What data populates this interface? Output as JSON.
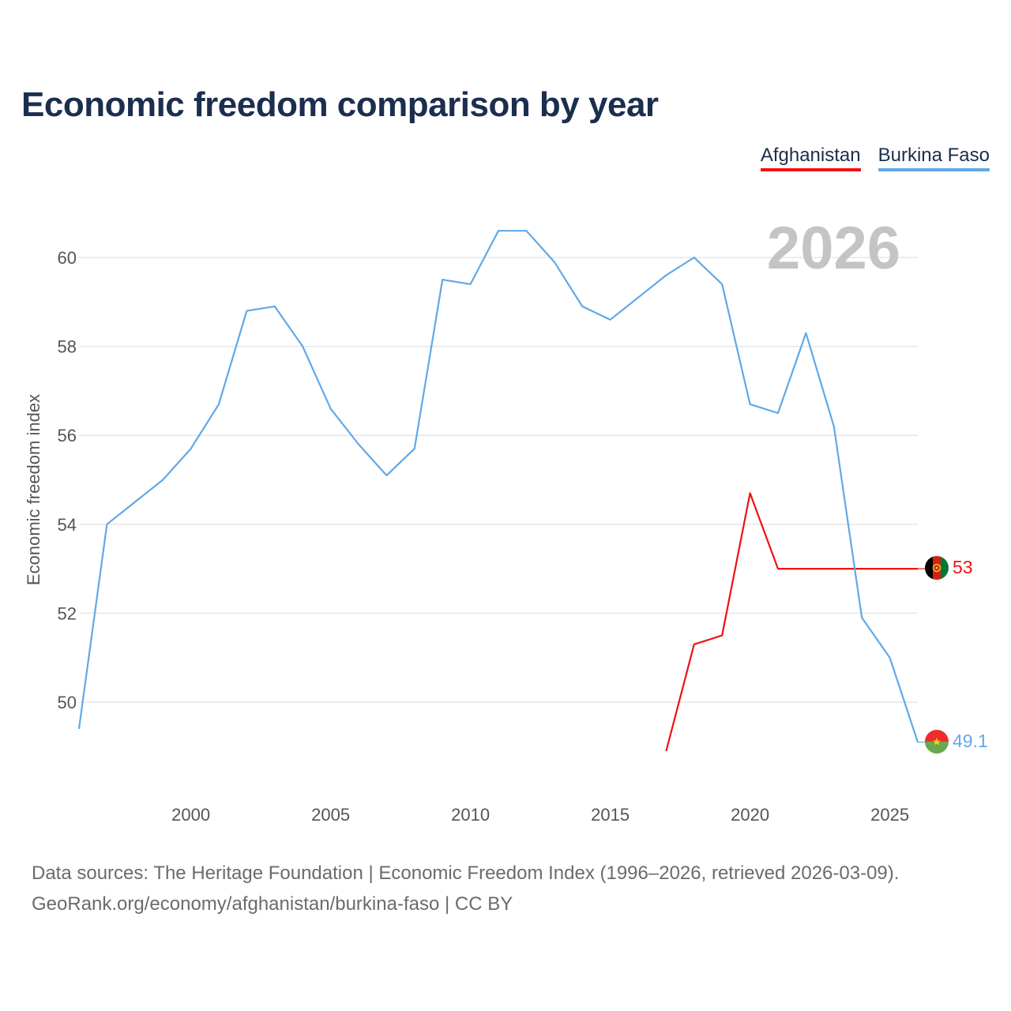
{
  "title": "Economic freedom comparison by year",
  "legend": [
    {
      "label": "Afghanistan",
      "color": "#ee1111"
    },
    {
      "label": "Burkina Faso",
      "color": "#60a8e8"
    }
  ],
  "footer": {
    "sources": "Data sources: The Heritage Foundation | Economic Freedom Index (1996–2026, retrieved 2026-03-09).",
    "credit": "GeoRank.org/economy/afghanistan/burkina-faso | CC BY"
  },
  "chart_data": {
    "type": "line",
    "title": "Economic freedom comparison by year",
    "xlabel": "",
    "ylabel": "Economic freedom index",
    "xlim": [
      1996,
      2026
    ],
    "ylim": [
      48.5,
      61.5
    ],
    "grid": true,
    "legend_position": "top-right",
    "year_label": "2026",
    "x_ticks": [
      2000,
      2005,
      2010,
      2015,
      2020,
      2025
    ],
    "y_ticks": [
      50,
      52,
      54,
      56,
      58,
      60
    ],
    "series": [
      {
        "name": "Afghanistan",
        "color": "#ee1111",
        "end_label": "53",
        "flag": "afghanistan-flag-icon",
        "points": [
          [
            2017,
            48.9
          ],
          [
            2018,
            51.3
          ],
          [
            2019,
            51.5
          ],
          [
            2020,
            54.7
          ],
          [
            2021,
            53.0
          ],
          [
            2022,
            53.0
          ],
          [
            2023,
            53.0
          ],
          [
            2024,
            53.0
          ],
          [
            2025,
            53.0
          ],
          [
            2026,
            53.0
          ]
        ]
      },
      {
        "name": "Burkina Faso",
        "color": "#60a8e8",
        "end_label": "49.1",
        "flag": "burkina-faso-flag-icon",
        "points": [
          [
            1996,
            49.4
          ],
          [
            1997,
            54.0
          ],
          [
            1998,
            54.5
          ],
          [
            1999,
            55.0
          ],
          [
            2000,
            55.7
          ],
          [
            2001,
            56.7
          ],
          [
            2002,
            58.8
          ],
          [
            2003,
            58.9
          ],
          [
            2004,
            58.0
          ],
          [
            2005,
            56.6
          ],
          [
            2006,
            55.8
          ],
          [
            2007,
            55.1
          ],
          [
            2008,
            55.7
          ],
          [
            2009,
            59.5
          ],
          [
            2010,
            59.4
          ],
          [
            2011,
            60.6
          ],
          [
            2012,
            60.6
          ],
          [
            2013,
            59.9
          ],
          [
            2014,
            58.9
          ],
          [
            2015,
            58.6
          ],
          [
            2016,
            59.1
          ],
          [
            2017,
            59.6
          ],
          [
            2018,
            60.0
          ],
          [
            2019,
            59.4
          ],
          [
            2020,
            56.7
          ],
          [
            2021,
            56.5
          ],
          [
            2022,
            58.3
          ],
          [
            2023,
            56.2
          ],
          [
            2024,
            51.9
          ],
          [
            2025,
            51.0
          ],
          [
            2026,
            49.1
          ]
        ]
      }
    ]
  }
}
